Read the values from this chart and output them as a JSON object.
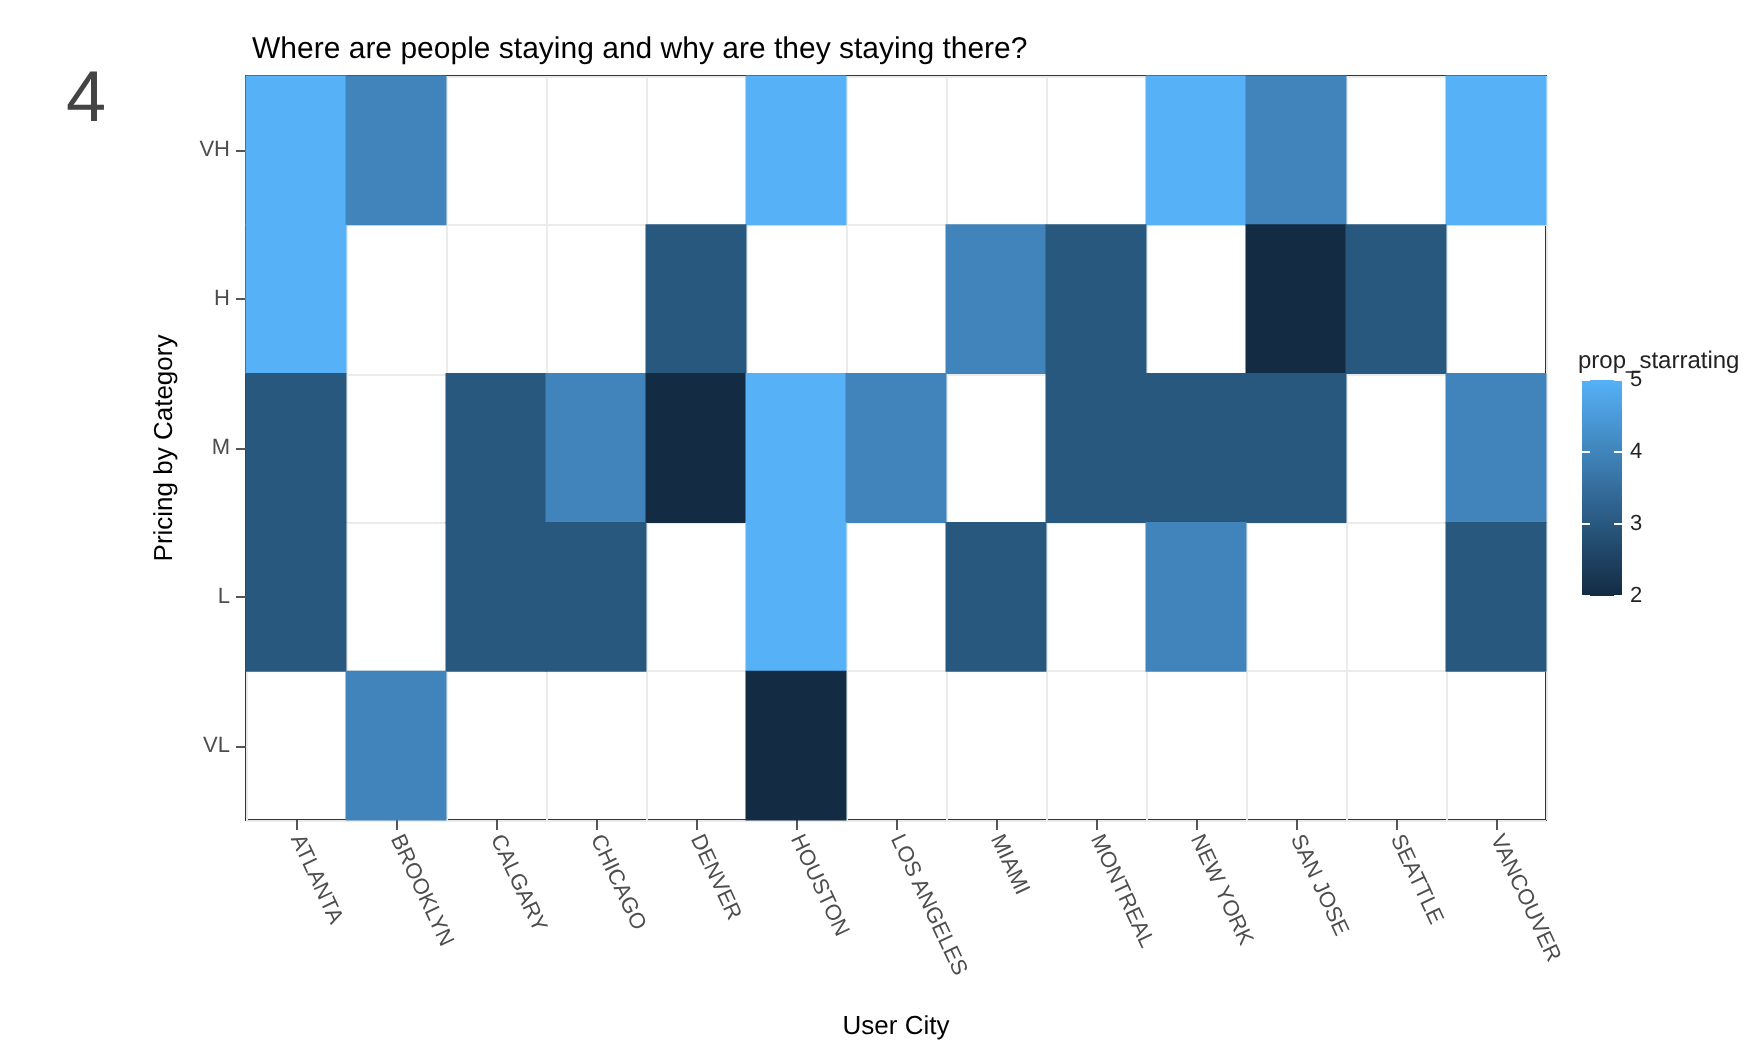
{
  "chart_data": {
    "type": "heatmap",
    "title": "Where are people staying and why are they staying there?",
    "xlabel": "User City",
    "ylabel": "Pricing by Category",
    "clabel": "prop_starrating",
    "categories": [
      "ATLANTA",
      "BROOKLYN",
      "CALGARY",
      "CHICAGO",
      "DENVER",
      "HOUSTON",
      "LOS ANGELES",
      "MIAMI",
      "MONTREAL",
      "NEW YORK",
      "SAN JOSE",
      "SEATTLE",
      "VANCOUVER"
    ],
    "y_categories": [
      "VH",
      "H",
      "M",
      "L",
      "VL"
    ],
    "cells": [
      [
        5,
        4,
        null,
        null,
        null,
        5,
        null,
        null,
        null,
        5,
        4,
        null,
        5
      ],
      [
        5,
        null,
        null,
        null,
        3,
        null,
        null,
        4,
        3,
        null,
        2,
        3,
        null
      ],
      [
        3,
        null,
        3,
        4,
        2,
        5,
        4,
        null,
        3,
        3,
        3,
        null,
        4
      ],
      [
        3,
        null,
        3,
        3,
        null,
        5,
        null,
        3,
        null,
        4,
        null,
        null,
        3
      ],
      [
        null,
        4,
        null,
        null,
        null,
        2,
        null,
        null,
        null,
        null,
        null,
        null,
        null
      ]
    ],
    "clim": [
      2,
      5
    ],
    "cticks": [
      2,
      3,
      4,
      5
    ],
    "grid": true,
    "annotations": [
      "4"
    ]
  }
}
